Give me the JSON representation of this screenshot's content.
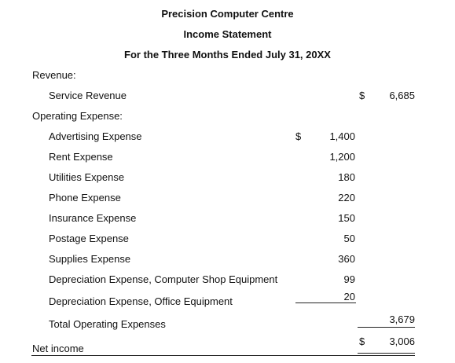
{
  "statement": {
    "company": "Precision Computer Centre",
    "title": "Income Statement",
    "period": "For the Three Months Ended July 31, 20XX"
  },
  "revenue": {
    "heading": "Revenue:",
    "items": [
      {
        "label": "Service Revenue",
        "currency": "$",
        "amount": "6,685"
      }
    ]
  },
  "operating_expense": {
    "heading": "Operating Expense:",
    "currency": "$",
    "items": [
      {
        "label": "Advertising Expense",
        "amount": "1,400"
      },
      {
        "label": "Rent Expense",
        "amount": "1,200"
      },
      {
        "label": "Utilities Expense",
        "amount": "180"
      },
      {
        "label": "Phone Expense",
        "amount": "220"
      },
      {
        "label": "Insurance Expense",
        "amount": "150"
      },
      {
        "label": "Postage Expense",
        "amount": "50"
      },
      {
        "label": "Supplies Expense",
        "amount": "360"
      },
      {
        "label": "Depreciation Expense, Computer Shop Equipment",
        "amount": "99"
      },
      {
        "label": "Depreciation Expense, Office Equipment",
        "amount": "20"
      }
    ],
    "total_label": "Total Operating Expenses",
    "total_amount": "3,679"
  },
  "net_income": {
    "label": "Net income",
    "currency": "$",
    "amount": "3,006"
  }
}
